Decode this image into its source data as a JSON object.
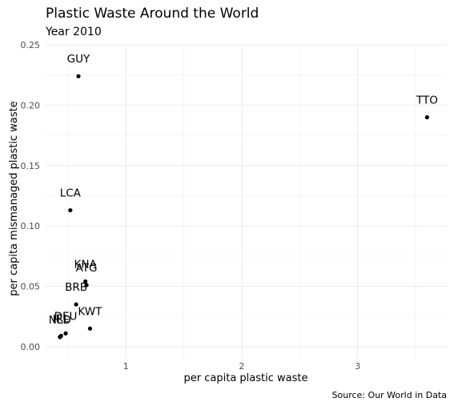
{
  "chart_data": {
    "type": "scatter",
    "title": "Plastic Waste Around the World",
    "subtitle": "Year 2010",
    "xlabel": "per capita plastic waste",
    "ylabel": "per capita mismanaged plastic waste",
    "caption": "Source: Our World in Data",
    "xlim": [
      0.3,
      3.77
    ],
    "ylim": [
      -0.01,
      0.25
    ],
    "x_ticks": [
      1,
      2,
      3
    ],
    "x_minor_ticks": [
      0.5,
      1.5,
      2.5,
      3.5
    ],
    "y_ticks": [
      0.0,
      0.05,
      0.1,
      0.15,
      0.2,
      0.25
    ],
    "y_tick_labels": [
      "0.00",
      "0.05",
      "0.10",
      "0.15",
      "0.20",
      "0.25"
    ],
    "grid": true,
    "points": [
      {
        "label": "GUY",
        "x": 0.59,
        "y": 0.224
      },
      {
        "label": "TTO",
        "x": 3.6,
        "y": 0.19
      },
      {
        "label": "LCA",
        "x": 0.52,
        "y": 0.113
      },
      {
        "label": "KNA",
        "x": 0.65,
        "y": 0.054
      },
      {
        "label": "ATG",
        "x": 0.66,
        "y": 0.051
      },
      {
        "label": "BRB",
        "x": 0.57,
        "y": 0.035
      },
      {
        "label": "KWT",
        "x": 0.69,
        "y": 0.015
      },
      {
        "label": "DEU",
        "x": 0.48,
        "y": 0.011
      },
      {
        "label": "IRL",
        "x": 0.44,
        "y": 0.009
      },
      {
        "label": "NLD",
        "x": 0.43,
        "y": 0.008
      }
    ]
  }
}
